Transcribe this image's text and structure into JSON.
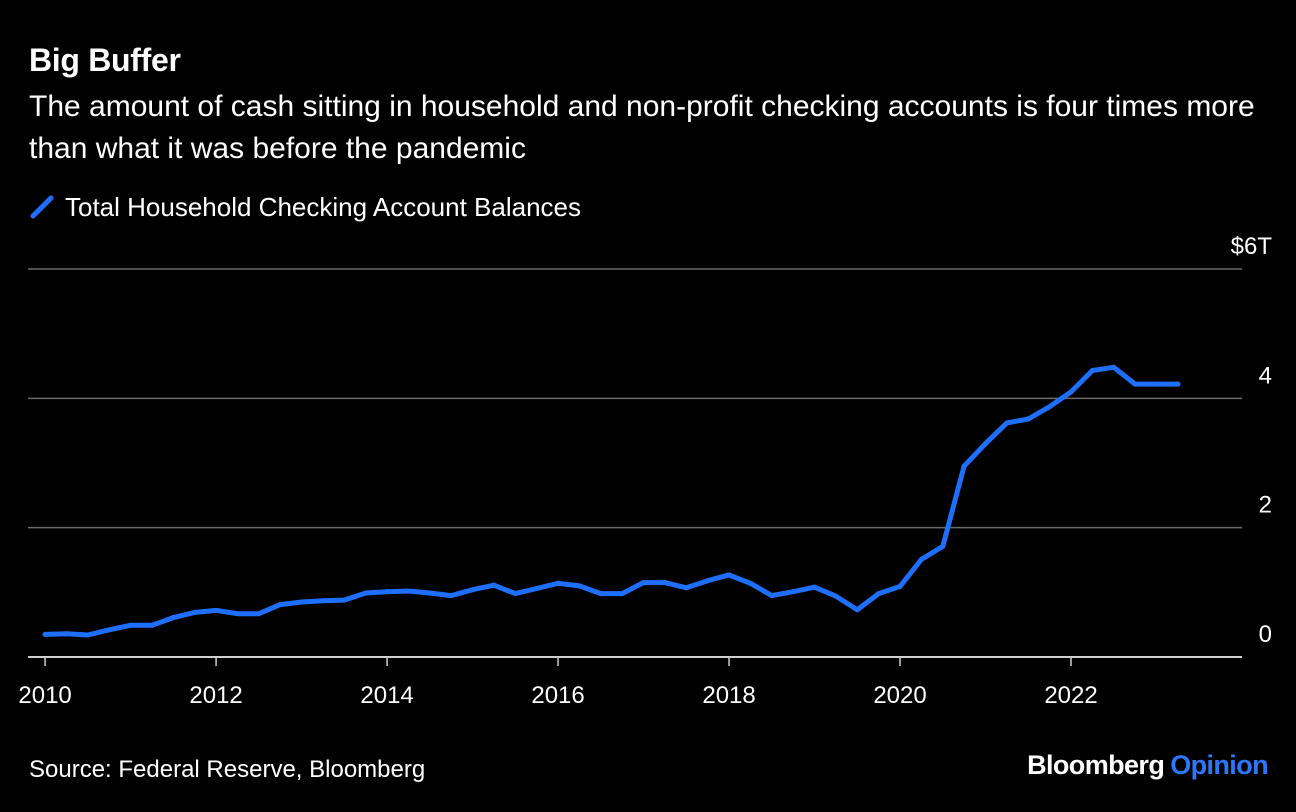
{
  "chart_data": {
    "type": "line",
    "title": "Big Buffer",
    "subtitle": "The amount of cash sitting in household and non-profit checking accounts is four times more than what it was before the pandemic",
    "xlabel": "",
    "ylabel": "",
    "xlim": [
      2009.8,
      2024.0
    ],
    "ylim": [
      0,
      6
    ],
    "y_unit_top_label": "$6T",
    "yticks": [
      {
        "value": 0,
        "label": "0"
      },
      {
        "value": 2,
        "label": "2"
      },
      {
        "value": 4,
        "label": "4"
      },
      {
        "value": 6,
        "label": "$6T"
      }
    ],
    "xticks": [
      {
        "value": 2010,
        "label": "2010"
      },
      {
        "value": 2012,
        "label": "2012"
      },
      {
        "value": 2014,
        "label": "2014"
      },
      {
        "value": 2016,
        "label": "2016"
      },
      {
        "value": 2018,
        "label": "2018"
      },
      {
        "value": 2020,
        "label": "2020"
      },
      {
        "value": 2022,
        "label": "2022"
      }
    ],
    "grid": true,
    "legend": "top-left",
    "series": [
      {
        "name": "Total Household Checking Account Balances",
        "color": "#1f6fff",
        "x": [
          2010.0,
          2010.25,
          2010.5,
          2010.75,
          2011.0,
          2011.25,
          2011.5,
          2011.75,
          2012.0,
          2012.25,
          2012.5,
          2012.75,
          2013.0,
          2013.25,
          2013.5,
          2013.75,
          2014.0,
          2014.25,
          2014.5,
          2014.75,
          2015.0,
          2015.25,
          2015.5,
          2015.75,
          2016.0,
          2016.25,
          2016.5,
          2016.75,
          2017.0,
          2017.25,
          2017.5,
          2017.75,
          2018.0,
          2018.25,
          2018.5,
          2018.75,
          2019.0,
          2019.25,
          2019.5,
          2019.75,
          2020.0,
          2020.25,
          2020.5,
          2020.75,
          2021.0,
          2021.25,
          2021.5,
          2021.75,
          2022.0,
          2022.25,
          2022.5,
          2022.75,
          2023.0,
          2023.25
        ],
        "values": [
          0.35,
          0.36,
          0.34,
          0.42,
          0.49,
          0.49,
          0.61,
          0.69,
          0.72,
          0.67,
          0.67,
          0.81,
          0.85,
          0.87,
          0.88,
          0.99,
          1.01,
          1.02,
          0.99,
          0.95,
          1.04,
          1.11,
          0.98,
          1.06,
          1.14,
          1.1,
          0.98,
          0.98,
          1.15,
          1.15,
          1.07,
          1.18,
          1.27,
          1.14,
          0.95,
          1.01,
          1.08,
          0.94,
          0.73,
          0.98,
          1.09,
          1.51,
          1.71,
          2.95,
          3.3,
          3.62,
          3.68,
          3.87,
          4.1,
          4.43,
          4.48,
          4.22,
          4.22,
          4.22
        ]
      }
    ]
  },
  "source": "Source: Federal Reserve, Bloomberg",
  "brand": {
    "main": "Bloomberg",
    "accent": "Opinion",
    "accent_color": "#2b78ff"
  }
}
